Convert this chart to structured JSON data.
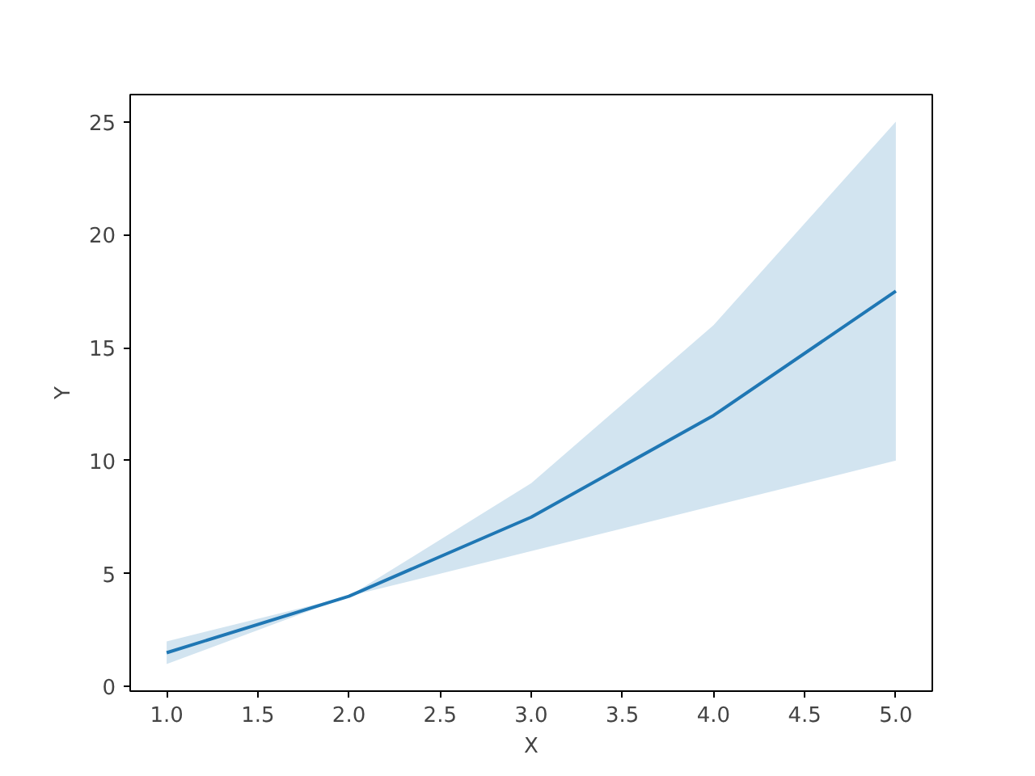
{
  "chart_data": {
    "type": "line",
    "xlabel": "X",
    "ylabel": "Y",
    "x": [
      1,
      2,
      3,
      4,
      5
    ],
    "series": [
      {
        "color": "#1f77b4",
        "values": [
          1.5,
          4,
          7.5,
          12,
          17.5
        ],
        "lower": [
          1,
          4,
          6,
          8,
          10
        ],
        "upper": [
          2,
          4,
          9,
          16,
          25
        ]
      }
    ],
    "xlim": [
      0.8,
      5.2
    ],
    "ylim": [
      -0.2,
      26.2
    ],
    "xticks": [
      {
        "value": 1,
        "label": "1.0"
      },
      {
        "value": 1.5,
        "label": "1.5"
      },
      {
        "value": 2,
        "label": "2.0"
      },
      {
        "value": 2.5,
        "label": "2.5"
      },
      {
        "value": 3,
        "label": "3.0"
      },
      {
        "value": 3.5,
        "label": "3.5"
      },
      {
        "value": 4,
        "label": "4.0"
      },
      {
        "value": 4.5,
        "label": "4.5"
      },
      {
        "value": 5,
        "label": "5.0"
      }
    ],
    "yticks": [
      0,
      5,
      10,
      15,
      20,
      25
    ],
    "grid": false,
    "marker": "none",
    "line_style": "solid"
  }
}
